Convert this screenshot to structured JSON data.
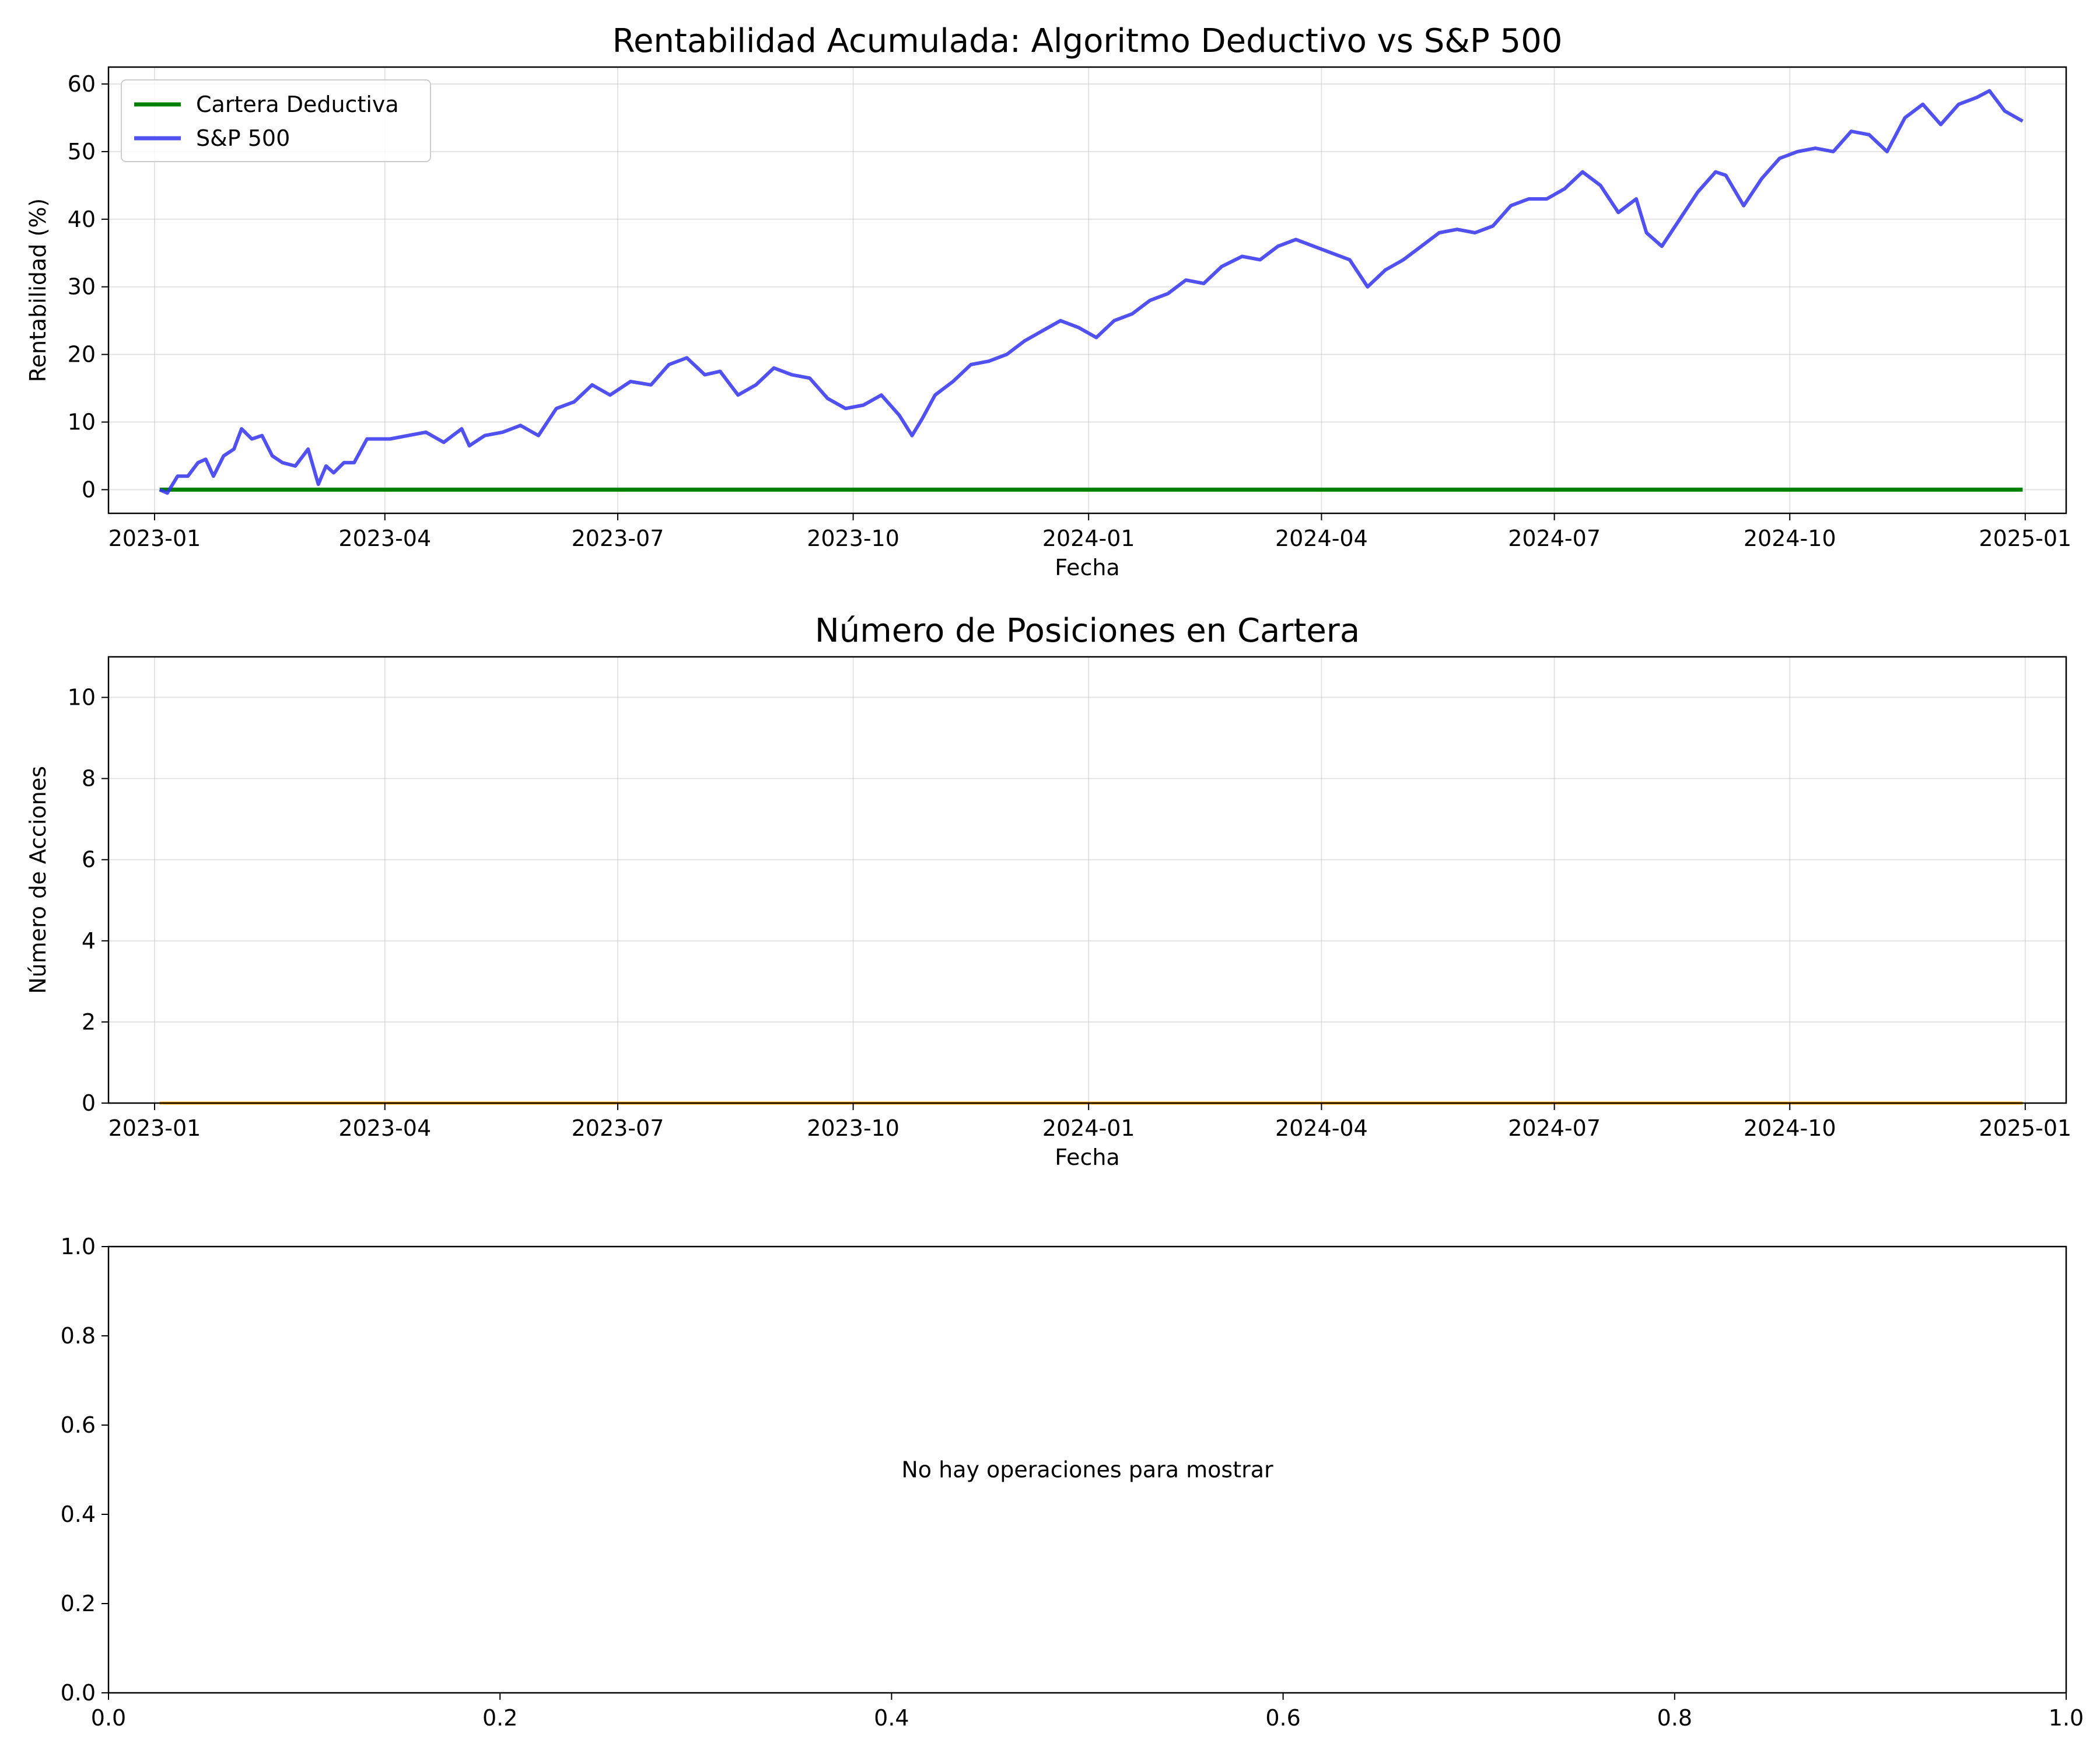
{
  "chart_data": [
    {
      "type": "line",
      "title": "Rentabilidad Acumulada: Algoritmo Deductivo vs S&P 500",
      "xlabel": "Fecha",
      "ylabel": "Rentabilidad (%)",
      "xlim": [
        "2022-12-14",
        "2025-01-17"
      ],
      "ylim": [
        -3.5,
        62.5
      ],
      "xticks": [
        "2023-01",
        "2023-04",
        "2023-07",
        "2023-10",
        "2024-01",
        "2024-04",
        "2024-07",
        "2024-10",
        "2025-01"
      ],
      "yticks": [
        0,
        10,
        20,
        30,
        40,
        50,
        60
      ],
      "grid": true,
      "legend": "upper-left",
      "series": [
        {
          "name": "Cartera Deductiva",
          "color": "#008000",
          "x": [
            "2023-01-03",
            "2024-12-31"
          ],
          "y": [
            0,
            0
          ]
        },
        {
          "name": "S&P 500",
          "color": "#3333ee",
          "x": [
            "2023-01-03",
            "2023-01-06",
            "2023-01-10",
            "2023-01-14",
            "2023-01-18",
            "2023-01-21",
            "2023-01-24",
            "2023-01-28",
            "2023-02-01",
            "2023-02-04",
            "2023-02-08",
            "2023-02-12",
            "2023-02-16",
            "2023-02-20",
            "2023-02-25",
            "2023-03-02",
            "2023-03-06",
            "2023-03-09",
            "2023-03-12",
            "2023-03-16",
            "2023-03-20",
            "2023-03-25",
            "2023-03-30",
            "2023-04-03",
            "2023-04-10",
            "2023-04-17",
            "2023-04-24",
            "2023-05-01",
            "2023-05-04",
            "2023-05-10",
            "2023-05-17",
            "2023-05-24",
            "2023-05-31",
            "2023-06-07",
            "2023-06-14",
            "2023-06-21",
            "2023-06-28",
            "2023-07-06",
            "2023-07-14",
            "2023-07-21",
            "2023-07-28",
            "2023-08-04",
            "2023-08-10",
            "2023-08-17",
            "2023-08-24",
            "2023-08-31",
            "2023-09-07",
            "2023-09-14",
            "2023-09-21",
            "2023-09-28",
            "2023-10-05",
            "2023-10-12",
            "2023-10-19",
            "2023-10-24",
            "2023-10-28",
            "2023-11-02",
            "2023-11-09",
            "2023-11-16",
            "2023-11-23",
            "2023-11-30",
            "2023-12-07",
            "2023-12-14",
            "2023-12-21",
            "2023-12-28",
            "2024-01-04",
            "2024-01-11",
            "2024-01-18",
            "2024-01-25",
            "2024-02-01",
            "2024-02-08",
            "2024-02-15",
            "2024-02-22",
            "2024-03-01",
            "2024-03-08",
            "2024-03-15",
            "2024-03-22",
            "2024-03-29",
            "2024-04-05",
            "2024-04-12",
            "2024-04-19",
            "2024-04-26",
            "2024-05-03",
            "2024-05-10",
            "2024-05-17",
            "2024-05-24",
            "2024-05-31",
            "2024-06-07",
            "2024-06-14",
            "2024-06-21",
            "2024-06-28",
            "2024-07-05",
            "2024-07-12",
            "2024-07-19",
            "2024-07-26",
            "2024-08-02",
            "2024-08-06",
            "2024-08-12",
            "2024-08-19",
            "2024-08-26",
            "2024-09-02",
            "2024-09-06",
            "2024-09-13",
            "2024-09-20",
            "2024-09-27",
            "2024-10-04",
            "2024-10-11",
            "2024-10-18",
            "2024-10-25",
            "2024-11-01",
            "2024-11-08",
            "2024-11-15",
            "2024-11-22",
            "2024-11-29",
            "2024-12-06",
            "2024-12-13",
            "2024-12-18",
            "2024-12-24",
            "2024-12-31"
          ],
          "y": [
            0,
            -0.5,
            2,
            2,
            4,
            4.5,
            2,
            5,
            6,
            9,
            7.5,
            8,
            5,
            4,
            3.5,
            6,
            0.8,
            3.5,
            2.5,
            4,
            4,
            7.5,
            7.5,
            7.5,
            8,
            8.5,
            7,
            9,
            6.5,
            8,
            8.5,
            9.5,
            8,
            12,
            13,
            15.5,
            14,
            16,
            15.5,
            18.5,
            19.5,
            17,
            17.5,
            14,
            15.5,
            18,
            17,
            16.5,
            13.5,
            12,
            12.5,
            14,
            11,
            8,
            10.5,
            14,
            16,
            18.5,
            19,
            20,
            22,
            23.5,
            25,
            24,
            22.5,
            25,
            26,
            28,
            29,
            31,
            30.5,
            33,
            34.5,
            34,
            36,
            37,
            36,
            35,
            34,
            30,
            32.5,
            34,
            36,
            38,
            38.5,
            38,
            39,
            42,
            43,
            43,
            44.5,
            47,
            45,
            41,
            43,
            38,
            36,
            40,
            44,
            47,
            46.5,
            42,
            46,
            49,
            50,
            50.5,
            50,
            53,
            52.5,
            50,
            55,
            57,
            54,
            57,
            58,
            59,
            56,
            54.5
          ]
        }
      ]
    },
    {
      "type": "line",
      "title": "Número de Posiciones en Cartera",
      "xlabel": "Fecha",
      "ylabel": "Número de Acciones",
      "xlim": [
        "2022-12-14",
        "2025-01-17"
      ],
      "ylim": [
        0,
        11
      ],
      "xticks": [
        "2023-01",
        "2023-04",
        "2023-07",
        "2023-10",
        "2024-01",
        "2024-04",
        "2024-07",
        "2024-10",
        "2025-01"
      ],
      "yticks": [
        0,
        2,
        4,
        6,
        8,
        10
      ],
      "grid": true,
      "series": [
        {
          "color": "#ffa500",
          "x": [
            "2023-01-03",
            "2024-12-31"
          ],
          "y": [
            0,
            0
          ]
        }
      ]
    },
    {
      "type": "line",
      "title": "",
      "xlabel": "",
      "ylabel": "",
      "xlim": [
        0,
        1
      ],
      "ylim": [
        0,
        1
      ],
      "xticks": [
        0.0,
        0.2,
        0.4,
        0.6,
        0.8,
        1.0
      ],
      "yticks": [
        0.0,
        0.2,
        0.4,
        0.6,
        0.8,
        1.0
      ],
      "grid": false,
      "annotation": "No hay operaciones para mostrar"
    }
  ]
}
